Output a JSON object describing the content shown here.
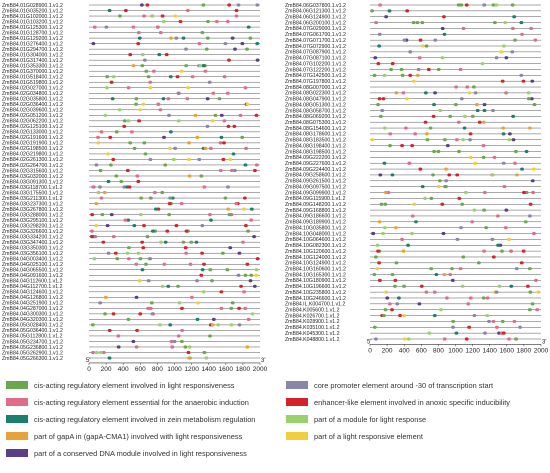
{
  "figure": {
    "left_panel": {
      "genes": [
        "ZmB84.01G028900.1.v1.2",
        "ZmB84.01G035200.1.v1.2",
        "ZmB84.01G102000.1.v1.2",
        "ZmB84.01G103200.1.v1.2",
        "ZmB84.01G125300.1.v1.2",
        "ZmB84.01G128700.1.v1.2",
        "ZmB84.01G129200.1.v1.2",
        "ZmB84.01G276400.1.v1.2",
        "ZmB84.01G294700.1.v1.2",
        "ZmB84.01G304000.1.v1.2",
        "ZmB84.01G317400.1.v1.2",
        "ZmB84.01G353300.1.v1.2",
        "ZmB84.01G370000.1.v1.2",
        "ZmB84.01G518400.1.v1.2",
        "ZmB84.01G519800.1.v1.2",
        "ZmB84.02G027000.1.v1.2",
        "ZmB84.02G034800.1.v1.2",
        "ZmB84.02G035800.1.v1.2",
        "ZmB84.02G036400.1.v1.2",
        "ZmB84.02G039600.1.v1.2",
        "ZmB84.02G051200.1.v1.2",
        "ZmB84.02G062200.1.v1.2",
        "ZmB84.02G125100.1.v1.2",
        "ZmB84.02G133000.1.v1.2",
        "ZmB84.02G191600.1.v1.2",
        "ZmB84.02G191900.1.v1.2",
        "ZmB84.02G198500.1.v1.2",
        "ZmB84.02G219800.1.v1.2",
        "ZmB84.02G261300.1.v1.2",
        "ZmB84.02G264700.1.v1.2",
        "ZmB84.02G315600.1.v1.2",
        "ZmB84.03G032000.1.v1.2",
        "ZmB84.03G091300.1.v1.2",
        "ZmB84.03G118700.1.v1.2",
        "ZmB84.03G175500.1.v1.2",
        "ZmB84.03G211300.1.v1.2",
        "ZmB84.03G237300.1.v1.2",
        "ZmB84.03G267800.1.v1.2",
        "ZmB84.03G288000.1.v1.2",
        "ZmB84.03G295100.1.v1.2",
        "ZmB84.03G298200.1.v1.2",
        "ZmB84.03G326600.1.v1.2",
        "ZmB84.03G334200.1.v1.2",
        "ZmB84.03G347400.1.v1.2",
        "ZmB84.03G350300.1.v1.2",
        "ZmB84.03G356100.1.v1.2",
        "ZmB84.04G003400.1.v1.2",
        "ZmB84.04G025100.1.v1.2",
        "ZmB84.04G065500.1.v1.2",
        "ZmB84.04G091600.1.v1.2",
        "ZmB84.04G112600.1.v1.2",
        "ZmB84.04G112700.1.v1.2",
        "ZmB84.04G124600.1.v1.2",
        "ZmB84.04G126800.1.v1.2",
        "ZmB84.04G251900.1.v1.2",
        "ZmB84.04G287000.1.v1.2",
        "ZmB84.04G300300.1.v1.2",
        "ZmB84.04G320300.1.v1.2",
        "ZmB84.05G028400.1.v1.2",
        "ZmB84.05G036400.1.v1.2",
        "ZmB84.05G112800.1.v1.2",
        "ZmB84.05G234700.1.v1.2",
        "ZmB84.05G236800.1.v1.2",
        "ZmB84.05G262900.1.v1.2",
        "ZmB84.05G266300.1.v1.2"
      ],
      "axis_ticks": [
        "0",
        "200",
        "400",
        "600",
        "800",
        "1000",
        "1200",
        "1400",
        "1600",
        "1800",
        "2000"
      ],
      "end_labels": [
        "5'",
        "3'"
      ]
    },
    "right_panel": {
      "genes": [
        "ZmB84.06G037800.1.v1.2",
        "ZmB84.06G121300.1.v1.2",
        "ZmB84.06G124900.1.v1.2",
        "ZmB84.06G200100.1.v1.2",
        "ZmB84.07G029000.1.v1.2",
        "ZmB84.07G061700.1.v1.2",
        "ZmB84.07G071700.1.v1.2",
        "ZmB84.07G072900.1.v1.2",
        "ZmB84.07G087900.1.v1.2",
        "ZmB84.07G087100.1.v1.2",
        "ZmB84.07G102200.1.v1.2",
        "ZmB84.07G122200.1.v1.2",
        "ZmB84.07G142500.1.v1.2",
        "ZmB84.07G197800.1.v1.2",
        "ZmB84.08G007000.1.v1.2",
        "ZmB84.08G022300.1.v1.2",
        "ZmB84.08G047900.1.v1.2",
        "ZmB84.08G051300.1.v1.2",
        "ZmB84.08G058700.1.v1.2",
        "ZmB84.08G069200.1.v1.2",
        "ZmB84.08G075300.1.v1.2",
        "ZmB84.08G154600.1.v1.2",
        "ZmB84.08G178600.1.v1.2",
        "ZmB84.08G183500.1.v1.2",
        "ZmB84.08G198400.1.v1.2",
        "ZmB84.08G198500.1.v1.2",
        "ZmB84.09G222200.1.v1.2",
        "ZmB84.09G227600.1.v1.2",
        "ZmB84.09G224400.1.v1.2",
        "ZmB84.09G258600.1.v1.2",
        "ZmB84.09G261500.1.v1.2",
        "ZmB84.09G097500.1.v1.2",
        "ZmB84.09G099900.1.v1.2",
        "ZmB84.09G115900.1.v1.2",
        "ZmB84.09G148200.1.v1.2",
        "ZmB84.09G168800.1.v1.2",
        "ZmB84.09G186600.1.v1.2",
        "ZmB84.09G189900.1.v1.2",
        "ZmB84.10G035800.1.v1.2",
        "ZmB84.10G048000.1.v1.2",
        "ZmB84.10G064600.1.v1.2",
        "ZmB84.10G082300.1.v1.2",
        "ZmB84.10G120600.1.v1.2",
        "ZmB84.10G124000.1.v1.2",
        "ZmB84.10G124900.1.v1.2",
        "ZmB84.10G160600.1.v1.2",
        "ZmB84.10G165300.1.v1.2",
        "ZmB84.10G180900.1.v1.2",
        "ZmB84.10G196600.1.v1.2",
        "ZmB84.10G235800.1.v1.2",
        "ZmB84.10G246600.1.v1.2",
        "ZmB84.IL.K004700.1.v1.2",
        "ZmB84.K005600.1.v1.2",
        "ZmB84.K026700.1.v1.2",
        "ZmB84.K028900.1.v1.2",
        "ZmB84.K035100.1.v1.2",
        "ZmB84.K045300.1.v1.2",
        "ZmB84.K048800.1.v1.2"
      ],
      "axis_ticks": [
        "0",
        "200",
        "400",
        "600",
        "800",
        "1000",
        "1200",
        "1400",
        "1600",
        "1800",
        "2000"
      ],
      "end_labels": [
        "5'",
        "3'"
      ]
    },
    "element_colors": {
      "light": "#6aa84f",
      "anaerobic": "#e06c8a",
      "zein": "#1b7f6e",
      "gapA": "#e8a23a",
      "dna_module": "#5a3f86",
      "core_promoter": "#8a86a8",
      "anoxic": "#d4232a",
      "module_light": "#9bd06e",
      "light_responsive": "#f1cf3c"
    }
  },
  "legend": {
    "items": [
      {
        "key": "light",
        "label": "cis-acting regulatory element involved in light responsiveness"
      },
      {
        "key": "core_promoter",
        "label": "core promoter element around -30 of transcription start"
      },
      {
        "key": "anaerobic",
        "label": "cis-acting regulatory element essential for the anaerobic induction"
      },
      {
        "key": "anoxic",
        "label": "enhancer-like element involved in anoxic specific inducibility"
      },
      {
        "key": "zein",
        "label": "cis-acting regulatory element involved in zein metabolism regulation"
      },
      {
        "key": "module_light",
        "label": "part of a module for light response"
      },
      {
        "key": "gapA",
        "label": "part of gapA in (gapA-CMA1) involved with light responsiveness"
      },
      {
        "key": "light_responsive",
        "label": "part of a light responsive element"
      },
      {
        "key": "dna_module",
        "label": "part of a conserved DNA module involved in light responsiveness"
      }
    ]
  }
}
